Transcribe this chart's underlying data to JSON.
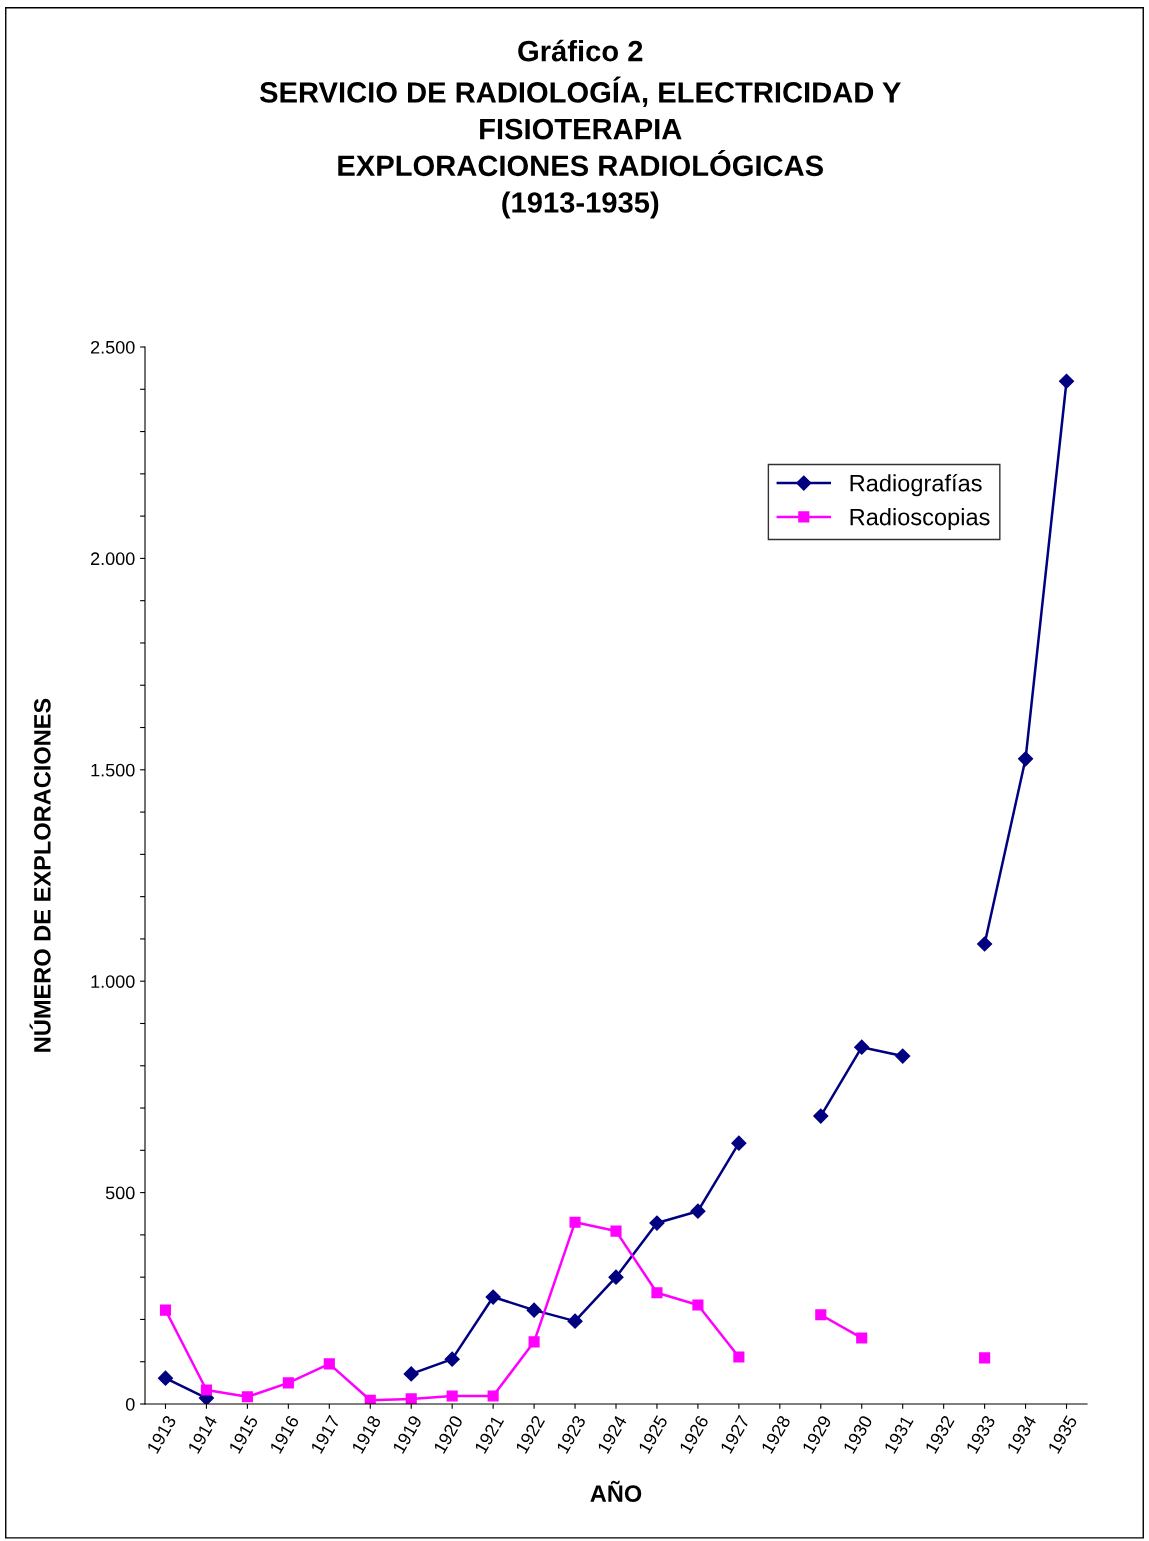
{
  "chart_data": {
    "type": "line",
    "title": "Gráfico 2\nSERVICIO DE RADIOLOGÍA, ELECTRICIDAD Y\nFISIOTERAPIA\nEXPLORACIONES RADIOLÓGICAS\n(1913-1935)",
    "xlabel": "AÑO",
    "ylabel": "NÚMERO DE EXPLORACIONES",
    "categories": [
      "1913",
      "1914",
      "1915",
      "1916",
      "1917",
      "1918",
      "1919",
      "1920",
      "1921",
      "1922",
      "1923",
      "1924",
      "1925",
      "1926",
      "1927",
      "1928",
      "1929",
      "1930",
      "1931",
      "1932",
      "1933",
      "1934",
      "1935"
    ],
    "series": [
      {
        "name": "Radiografías",
        "color": "#000080",
        "marker": "diamond",
        "values": [
          61,
          14,
          null,
          null,
          null,
          null,
          71,
          106,
          253,
          222,
          196,
          300,
          428,
          456,
          617,
          null,
          681,
          844,
          823,
          null,
          1088,
          1526,
          2419
        ]
      },
      {
        "name": "Radioscopias",
        "color": "#ff00ff",
        "marker": "square",
        "values": [
          222,
          33,
          17,
          50,
          95,
          9,
          12,
          19,
          19,
          147,
          430,
          409,
          263,
          234,
          111,
          null,
          211,
          156,
          null,
          null,
          109,
          null,
          null
        ]
      }
    ],
    "ylim": [
      0,
      2500
    ],
    "yticks": [
      0,
      {
        "value": 100,
        "label": null
      },
      {
        "value": 200,
        "label": null
      },
      {
        "value": 300,
        "label": null
      },
      {
        "value": 400,
        "label": null
      },
      500,
      {
        "value": 600,
        "label": null
      },
      {
        "value": 700,
        "label": null
      },
      {
        "value": 800,
        "label": null
      },
      {
        "value": 900,
        "label": null
      },
      {
        "value": 1000,
        "label": "1.000"
      },
      {
        "value": 1100,
        "label": null
      },
      {
        "value": 1200,
        "label": null
      },
      {
        "value": 1300,
        "label": null
      },
      {
        "value": 1400,
        "label": null
      },
      {
        "value": 1500,
        "label": "1.500"
      },
      {
        "value": 1600,
        "label": null
      },
      {
        "value": 1700,
        "label": null
      },
      {
        "value": 1800,
        "label": null
      },
      {
        "value": 1900,
        "label": null
      },
      {
        "value": 2000,
        "label": "2.000"
      },
      {
        "value": 2100,
        "label": null
      },
      {
        "value": 2200,
        "label": null
      },
      {
        "value": 2300,
        "label": null
      },
      {
        "value": 2400,
        "label": null
      },
      {
        "value": 2500,
        "label": "2.500"
      }
    ],
    "grid": false,
    "legend": "top right",
    "line_style": "solid"
  }
}
